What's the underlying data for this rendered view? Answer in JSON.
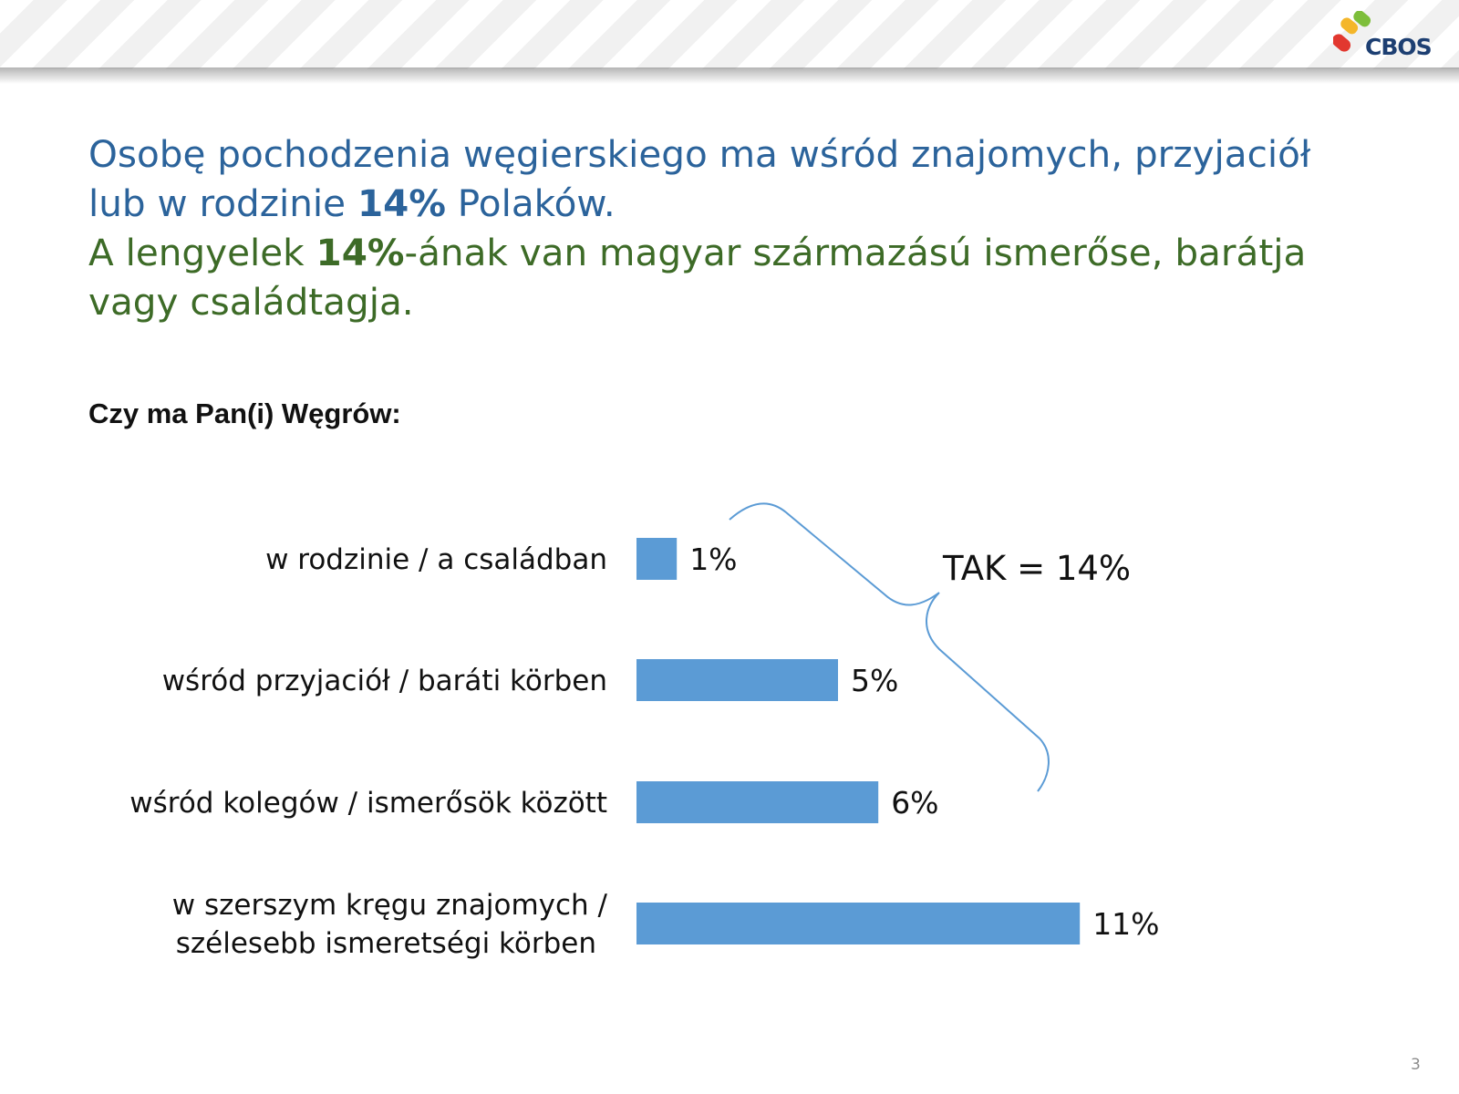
{
  "header": {
    "brand": "CBOS",
    "colors": {
      "red": "#e2382f",
      "yellow": "#f4b62a",
      "green": "#7dbe3a",
      "text": "#1d3f72"
    }
  },
  "headline": {
    "pl_line1": "Osobę pochodzenia węgierskiego ma wśród znajomych, przyjaciół",
    "pl_line2_pre": "lub w rodzinie ",
    "pl_line2_bold": "14%",
    "pl_line2_post": " Polaków.",
    "hu_line1_pre": "A lengyelek ",
    "hu_line1_bold": "14%",
    "hu_line1_post": "-ának van magyar származású ismerőse, barátja",
    "hu_line2": "vagy családtagja.",
    "colors": {
      "polish": "#2b639b",
      "hungarian": "#3d6b27"
    }
  },
  "question": "Czy ma Pan(i) Węgrów:",
  "chart_data": {
    "type": "bar",
    "orientation": "horizontal",
    "categories": [
      [
        "w rodzinie / a családban"
      ],
      [
        "wśród przyjaciół / baráti körben"
      ],
      [
        "wśród kolegów / ismerősök között"
      ],
      [
        "w szerszym kręgu znajomych /",
        "szélesebb ismeretségi körben"
      ]
    ],
    "values": [
      1,
      5,
      6,
      11
    ],
    "value_labels": [
      "1%",
      "5%",
      "6%",
      "11%"
    ],
    "unit": "%",
    "xlim": [
      0,
      11
    ],
    "bar_color": "#5b9bd5",
    "grid": false,
    "legend": "none",
    "annotation": {
      "text": "TAK = 14%",
      "bracket_color": "#5b9bd5"
    }
  },
  "footer": {
    "page_number": "3"
  }
}
